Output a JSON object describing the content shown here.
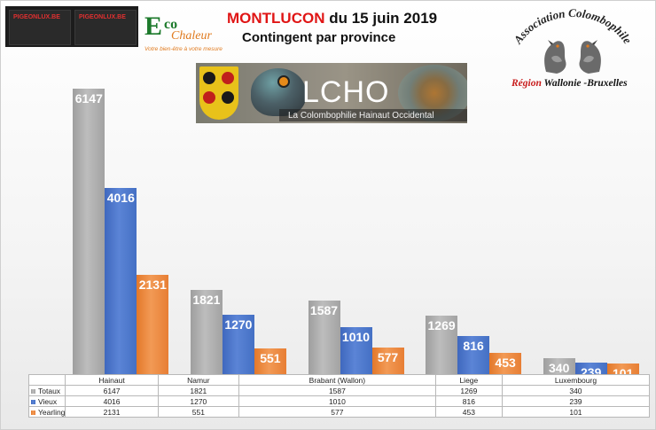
{
  "header": {
    "title_city": "MONTLUCON",
    "title_date": "du 15 juin 2019",
    "subtitle": "Contingent par province"
  },
  "logos": {
    "pigeonlux_1": "PIGEONLUX.BE",
    "pigeonlux_2": "PIGEONLUX.BE",
    "eco_E": "E",
    "eco_co": "co",
    "eco_chaleur": "Chaleur",
    "eco_tagline": "Votre bien-être à votre mesure",
    "lcho_title": "LCHO",
    "lcho_subtitle": "La Colombophilie Hainaut Occidental",
    "assoc_arc": "Association Colombophile",
    "assoc_region": "Région",
    "assoc_wallonie": "Wallonie",
    "assoc_bruxelles": "Bruxelles"
  },
  "colors": {
    "totaux": "#a8a8a8",
    "vieux": "#4a74c8",
    "yearling": "#ec8a40",
    "title_red": "#e01515"
  },
  "chart_data": {
    "type": "bar",
    "title": "MONTLUCON du 15 juin 2019 — Contingent par province",
    "categories": [
      "Hainaut",
      "Namur",
      "Brabant (Wallon)",
      "Liege",
      "Luxembourg"
    ],
    "series": [
      {
        "name": "Totaux",
        "values": [
          6147,
          1821,
          1587,
          1269,
          340
        ]
      },
      {
        "name": "Vieux",
        "values": [
          4016,
          1270,
          1010,
          816,
          239
        ]
      },
      {
        "name": "Yearling",
        "values": [
          2131,
          551,
          577,
          453,
          101
        ]
      }
    ],
    "ylim": [
      0,
      6147
    ],
    "grid": false,
    "legend": "data table below chart"
  }
}
